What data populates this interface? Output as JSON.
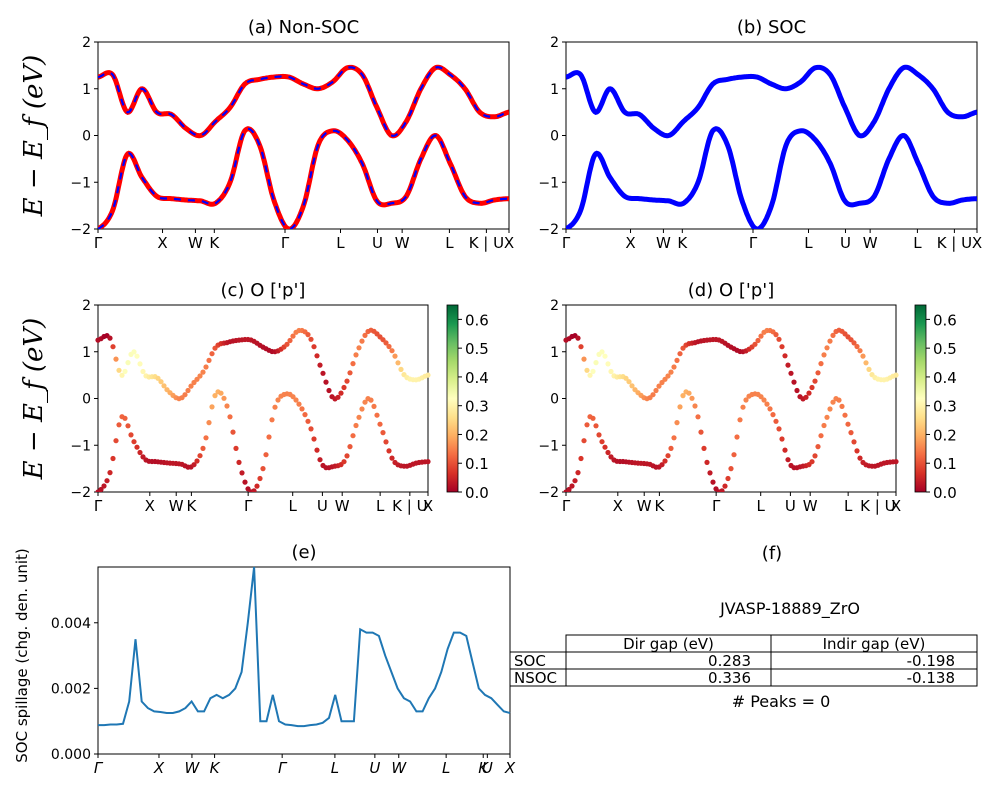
{
  "panels": {
    "a": {
      "title": "(a) Non-SOC"
    },
    "b": {
      "title": "(b) SOC"
    },
    "c": {
      "title": "(c)  O ['p']"
    },
    "d": {
      "title": "(d) O ['p']"
    },
    "e": {
      "title": "(e)"
    },
    "f": {
      "title": "(f)"
    }
  },
  "band_ylabel": "E − E_f (eV)",
  "kpath_labels": [
    "Γ",
    "X",
    "W",
    "K",
    "Γ",
    "L",
    "U",
    "W",
    "L",
    "K | U",
    "X"
  ],
  "colorbar": {
    "ticks": [
      "0.0",
      "0.1",
      "0.2",
      "0.3",
      "0.4",
      "0.5",
      "0.6"
    ],
    "colormap": "RdYlGn"
  },
  "colors": {
    "soc": "#0000ff",
    "nonsoc": "#ff0000",
    "spillage": "#1f77b4"
  },
  "chart_data": [
    {
      "type": "line",
      "panel": "a",
      "title": "(a) Non-SOC",
      "ylabel": "E − E_f (eV)",
      "ylim": [
        -2,
        2
      ],
      "yticks": [
        -2,
        -1,
        0,
        1,
        2
      ],
      "x_ticks": [
        "Γ",
        "X",
        "W",
        "K",
        "Γ",
        "L",
        "U",
        "W",
        "L",
        "K | U",
        "X"
      ],
      "series": [
        {
          "values": [
            -2.0,
            -1.6,
            -0.4,
            -0.9,
            -1.3,
            -1.35,
            -1.38,
            -1.4,
            -1.45,
            -1.0,
            0.1,
            -0.2,
            -1.4,
            -2.0,
            -1.5,
            -0.2,
            0.1,
            -0.1,
            -0.6,
            -1.4,
            -1.45,
            -1.3,
            -0.5,
            0.0,
            -0.6,
            -1.3,
            -1.45,
            -1.38,
            -1.35
          ]
        },
        {
          "values": [
            1.25,
            1.3,
            0.5,
            1.0,
            0.5,
            0.45,
            0.15,
            0.0,
            0.3,
            0.6,
            1.1,
            1.2,
            1.25,
            1.25,
            1.1,
            1.0,
            1.15,
            1.45,
            1.3,
            0.6,
            0.0,
            0.3,
            1.0,
            1.45,
            1.3,
            1.0,
            0.5,
            0.4,
            0.5
          ]
        }
      ]
    },
    {
      "type": "line",
      "panel": "b",
      "title": "(b) SOC",
      "ylim": [
        -2,
        2
      ],
      "yticks": [
        -2,
        -1,
        0,
        1,
        2
      ],
      "x_ticks": [
        "Γ",
        "X",
        "W",
        "K",
        "Γ",
        "L",
        "U",
        "W",
        "L",
        "K | U",
        "X"
      ],
      "series": [
        {
          "values": [
            -2.0,
            -1.6,
            -0.4,
            -0.9,
            -1.3,
            -1.35,
            -1.38,
            -1.4,
            -1.45,
            -1.0,
            0.1,
            -0.2,
            -1.4,
            -2.0,
            -1.5,
            -0.2,
            0.1,
            -0.1,
            -0.6,
            -1.4,
            -1.45,
            -1.3,
            -0.5,
            0.0,
            -0.6,
            -1.3,
            -1.45,
            -1.38,
            -1.35
          ]
        },
        {
          "values": [
            1.25,
            1.3,
            0.5,
            1.0,
            0.5,
            0.45,
            0.15,
            0.0,
            0.3,
            0.6,
            1.1,
            1.2,
            1.25,
            1.25,
            1.1,
            1.0,
            1.15,
            1.45,
            1.3,
            0.6,
            0.0,
            0.3,
            1.0,
            1.45,
            1.3,
            1.0,
            0.5,
            0.4,
            0.5
          ]
        }
      ]
    },
    {
      "type": "scatter",
      "panel": "c",
      "title": "(c)  O ['p']",
      "ylabel": "E − E_f (eV)",
      "ylim": [
        -2,
        2
      ],
      "yticks": [
        -2,
        -1,
        0,
        1,
        2
      ],
      "x_ticks": [
        "Γ",
        "X",
        "W",
        "K",
        "Γ",
        "L",
        "U",
        "W",
        "L",
        "K | U",
        "X"
      ],
      "color_range": [
        0.0,
        0.65
      ],
      "series": [
        {
          "values": [
            -2.0,
            -1.6,
            -0.4,
            -0.9,
            -1.3,
            -1.35,
            -1.38,
            -1.4,
            -1.45,
            -1.0,
            0.1,
            -0.2,
            -1.4,
            -2.0,
            -1.5,
            -0.2,
            0.1,
            -0.1,
            -0.6,
            -1.4,
            -1.45,
            -1.3,
            -0.5,
            0.0,
            -0.6,
            -1.3,
            -1.45,
            -1.38,
            -1.35
          ],
          "weights": [
            0.02,
            0.05,
            0.12,
            0.08,
            0.03,
            0.02,
            0.03,
            0.03,
            0.03,
            0.12,
            0.2,
            0.15,
            0.05,
            0.02,
            0.1,
            0.15,
            0.15,
            0.15,
            0.1,
            0.03,
            0.03,
            0.08,
            0.15,
            0.15,
            0.12,
            0.05,
            0.03,
            0.03,
            0.03
          ]
        },
        {
          "values": [
            1.25,
            1.3,
            0.5,
            1.0,
            0.5,
            0.45,
            0.15,
            0.0,
            0.3,
            0.6,
            1.1,
            1.2,
            1.25,
            1.25,
            1.1,
            1.0,
            1.15,
            1.45,
            1.3,
            0.6,
            0.0,
            0.3,
            1.0,
            1.45,
            1.3,
            1.0,
            0.5,
            0.4,
            0.5
          ],
          "weights": [
            0.02,
            0.02,
            0.3,
            0.33,
            0.3,
            0.25,
            0.2,
            0.15,
            0.15,
            0.15,
            0.1,
            0.03,
            0.03,
            0.03,
            0.02,
            0.02,
            0.1,
            0.15,
            0.1,
            0.03,
            0.03,
            0.08,
            0.15,
            0.12,
            0.1,
            0.15,
            0.28,
            0.3,
            0.28
          ]
        }
      ]
    },
    {
      "type": "scatter",
      "panel": "d",
      "title": "(d) O ['p']",
      "ylim": [
        -2,
        2
      ],
      "yticks": [
        -2,
        -1,
        0,
        1,
        2
      ],
      "x_ticks": [
        "Γ",
        "X",
        "W",
        "K",
        "Γ",
        "L",
        "U",
        "W",
        "L",
        "K | U",
        "X"
      ],
      "color_range": [
        0.0,
        0.65
      ],
      "series": [
        {
          "values": [
            -2.0,
            -1.6,
            -0.4,
            -0.9,
            -1.3,
            -1.35,
            -1.38,
            -1.4,
            -1.45,
            -1.0,
            0.1,
            -0.2,
            -1.4,
            -2.0,
            -1.5,
            -0.2,
            0.1,
            -0.1,
            -0.6,
            -1.4,
            -1.45,
            -1.3,
            -0.5,
            0.0,
            -0.6,
            -1.3,
            -1.45,
            -1.38,
            -1.35
          ],
          "weights": [
            0.02,
            0.05,
            0.12,
            0.08,
            0.03,
            0.02,
            0.03,
            0.03,
            0.03,
            0.12,
            0.2,
            0.15,
            0.05,
            0.02,
            0.1,
            0.15,
            0.15,
            0.15,
            0.1,
            0.03,
            0.03,
            0.08,
            0.15,
            0.15,
            0.12,
            0.05,
            0.03,
            0.03,
            0.03
          ]
        },
        {
          "values": [
            1.25,
            1.3,
            0.5,
            1.0,
            0.5,
            0.45,
            0.15,
            0.0,
            0.3,
            0.6,
            1.1,
            1.2,
            1.25,
            1.25,
            1.1,
            1.0,
            1.15,
            1.45,
            1.3,
            0.6,
            0.0,
            0.3,
            1.0,
            1.45,
            1.3,
            1.0,
            0.5,
            0.4,
            0.5
          ],
          "weights": [
            0.02,
            0.02,
            0.3,
            0.33,
            0.3,
            0.25,
            0.2,
            0.15,
            0.15,
            0.15,
            0.1,
            0.03,
            0.03,
            0.03,
            0.02,
            0.02,
            0.1,
            0.15,
            0.1,
            0.03,
            0.03,
            0.08,
            0.15,
            0.12,
            0.1,
            0.15,
            0.28,
            0.3,
            0.28
          ]
        }
      ]
    },
    {
      "type": "line",
      "panel": "e",
      "title": "(e)",
      "ylabel": "SOC spillage (chg. den. unit)",
      "ylim": [
        0.0,
        0.0057
      ],
      "yticks": [
        "0.000",
        "0.002",
        "0.004"
      ],
      "x_ticks": [
        "Γ",
        "X",
        "W",
        "K",
        "Γ",
        "L",
        "U",
        "W",
        "L",
        "K",
        "U",
        "X"
      ],
      "series": [
        {
          "values": [
            0.00088,
            0.00088,
            0.0009,
            0.0009,
            0.00092,
            0.0016,
            0.0035,
            0.0016,
            0.0014,
            0.0013,
            0.00128,
            0.00125,
            0.00125,
            0.0013,
            0.0014,
            0.0016,
            0.0013,
            0.0013,
            0.0017,
            0.0018,
            0.0017,
            0.0018,
            0.002,
            0.0025,
            0.004,
            0.0057,
            0.001,
            0.001,
            0.0018,
            0.001,
            0.0009,
            0.00088,
            0.00085,
            0.00085,
            0.00088,
            0.0009,
            0.00095,
            0.0011,
            0.0018,
            0.001,
            0.001,
            0.001,
            0.0038,
            0.0037,
            0.0037,
            0.0036,
            0.003,
            0.0025,
            0.002,
            0.0017,
            0.0016,
            0.0013,
            0.0013,
            0.0017,
            0.002,
            0.0025,
            0.0032,
            0.0037,
            0.0037,
            0.0036,
            0.0028,
            0.002,
            0.0018,
            0.0017,
            0.0015,
            0.0013,
            0.00125
          ]
        }
      ]
    },
    {
      "type": "table",
      "panel": "f",
      "title": "(f)",
      "caption": "JVASP-18889_ZrO",
      "columns": [
        "Dir gap (eV)",
        "Indir gap (eV)"
      ],
      "rows": [
        {
          "label": "SOC",
          "dir_gap": "0.283",
          "indir_gap": "-0.198"
        },
        {
          "label": "NSOC",
          "dir_gap": "0.336",
          "indir_gap": "-0.138"
        }
      ],
      "footer": "# Peaks = 0"
    }
  ]
}
